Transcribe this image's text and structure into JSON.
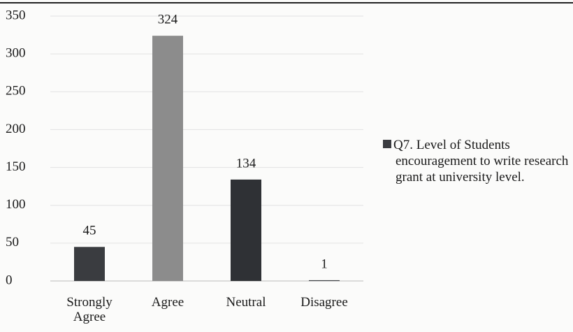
{
  "chart_data": {
    "type": "bar",
    "categories": [
      "Strongly Agree",
      "Agree",
      "Neutral",
      "Disagree"
    ],
    "series": [
      {
        "name": "Q7. Level of Students encouragement to write research grant at university level.",
        "color": "#3a3c40",
        "colors": [
          "#3a3c40",
          "#8c8c8c",
          "#2f3135",
          "#3a3c40"
        ],
        "values": [
          45,
          324,
          134,
          1
        ]
      }
    ],
    "ylim": [
      0,
      350
    ],
    "yticks": [
      0,
      50,
      100,
      150,
      200,
      250,
      300,
      350
    ],
    "grid": true,
    "legend": "right"
  }
}
